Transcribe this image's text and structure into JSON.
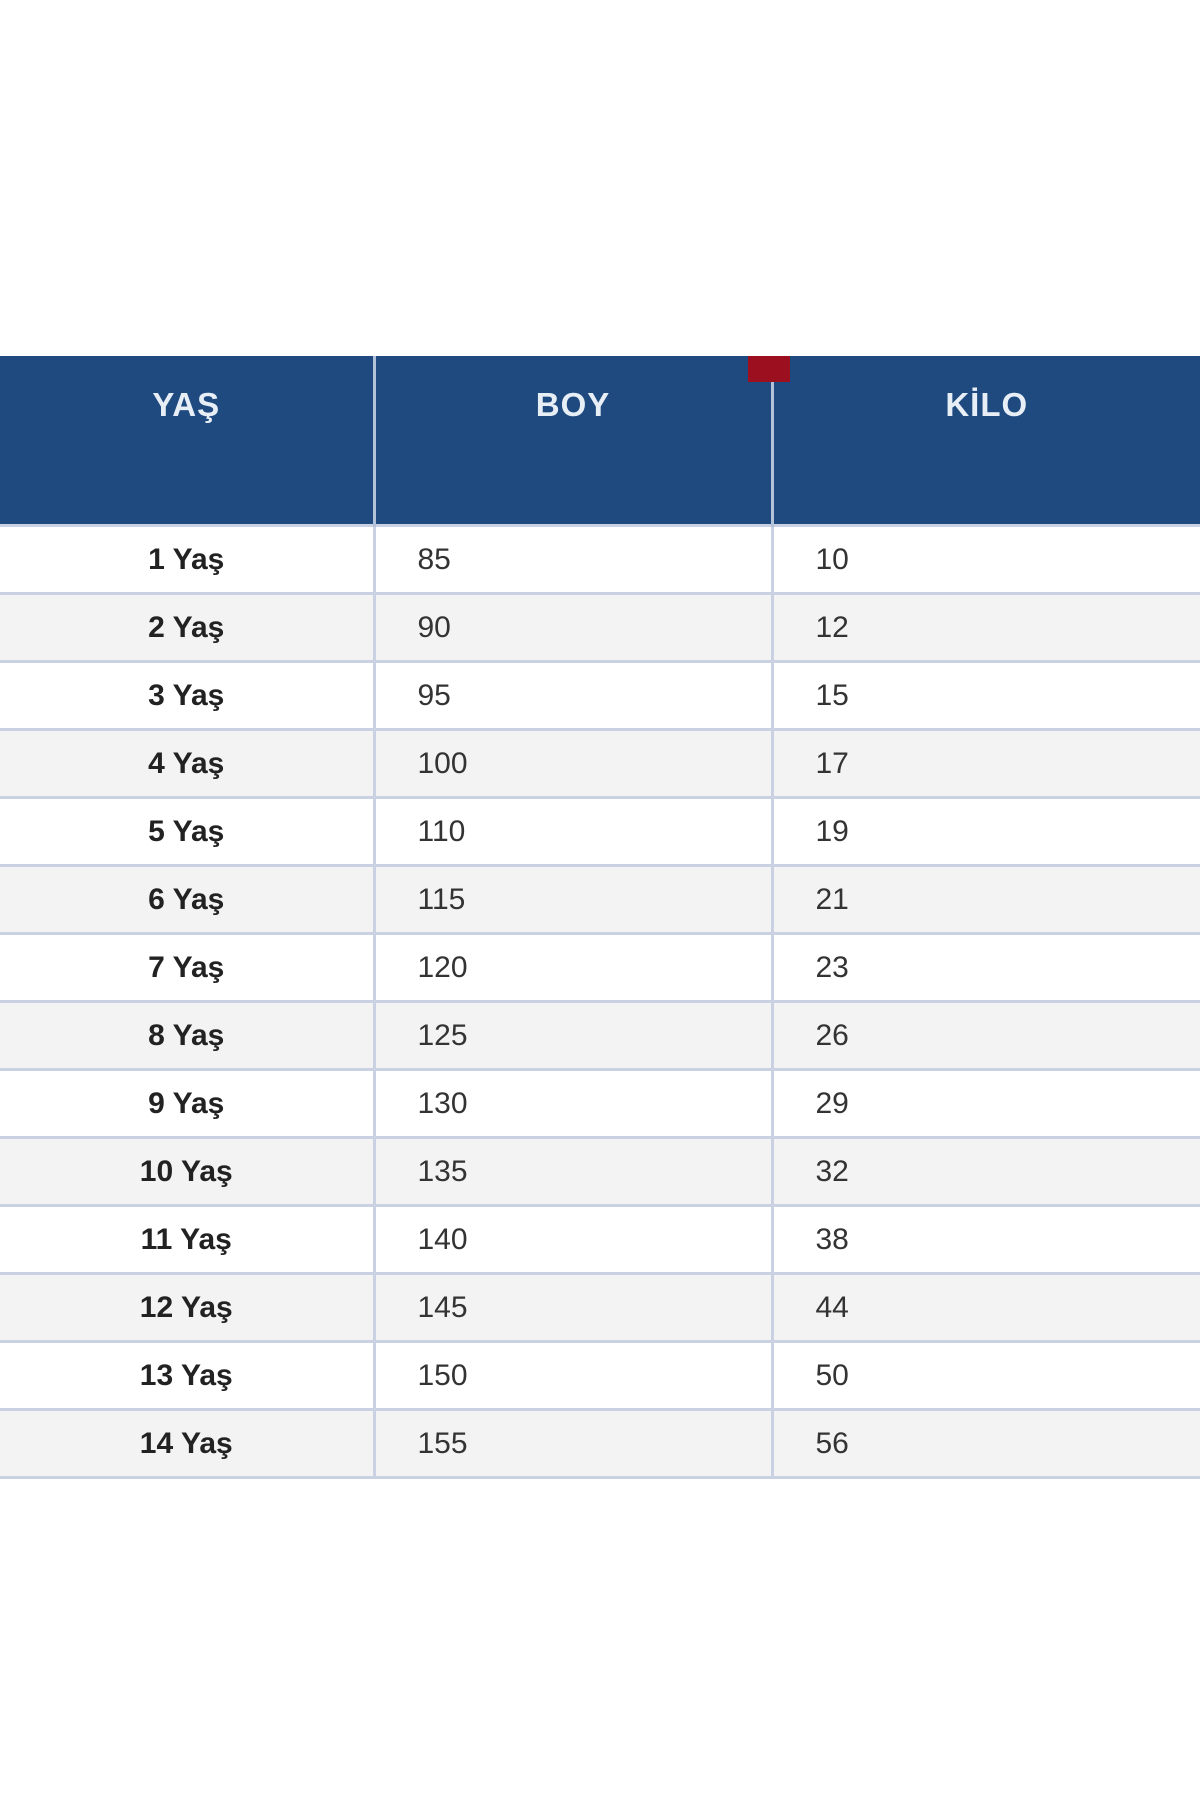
{
  "header": {
    "age": "YAŞ",
    "height": "BOY",
    "weight": "KİLO"
  },
  "rows": [
    {
      "age": "1 Yaş",
      "height": "85",
      "weight": "10"
    },
    {
      "age": "2 Yaş",
      "height": "90",
      "weight": "12"
    },
    {
      "age": "3 Yaş",
      "height": "95",
      "weight": "15"
    },
    {
      "age": "4 Yaş",
      "height": "100",
      "weight": "17"
    },
    {
      "age": "5 Yaş",
      "height": "110",
      "weight": "19"
    },
    {
      "age": "6 Yaş",
      "height": "115",
      "weight": "21"
    },
    {
      "age": "7 Yaş",
      "height": "120",
      "weight": "23"
    },
    {
      "age": "8 Yaş",
      "height": "125",
      "weight": "26"
    },
    {
      "age": "9 Yaş",
      "height": "130",
      "weight": "29"
    },
    {
      "age": "10 Yaş",
      "height": "135",
      "weight": "32"
    },
    {
      "age": "11 Yaş",
      "height": "140",
      "weight": "38"
    },
    {
      "age": "12 Yaş",
      "height": "145",
      "weight": "44"
    },
    {
      "age": "13 Yaş",
      "height": "150",
      "weight": "50"
    },
    {
      "age": "14 Yaş",
      "height": "155",
      "weight": "56"
    }
  ],
  "colors": {
    "header_bg": "#1f4a80",
    "header_text": "#e8eef6",
    "marker": "#9c0f1f",
    "row_alt": "#f3f3f3",
    "grid": "#c9d1e2"
  }
}
